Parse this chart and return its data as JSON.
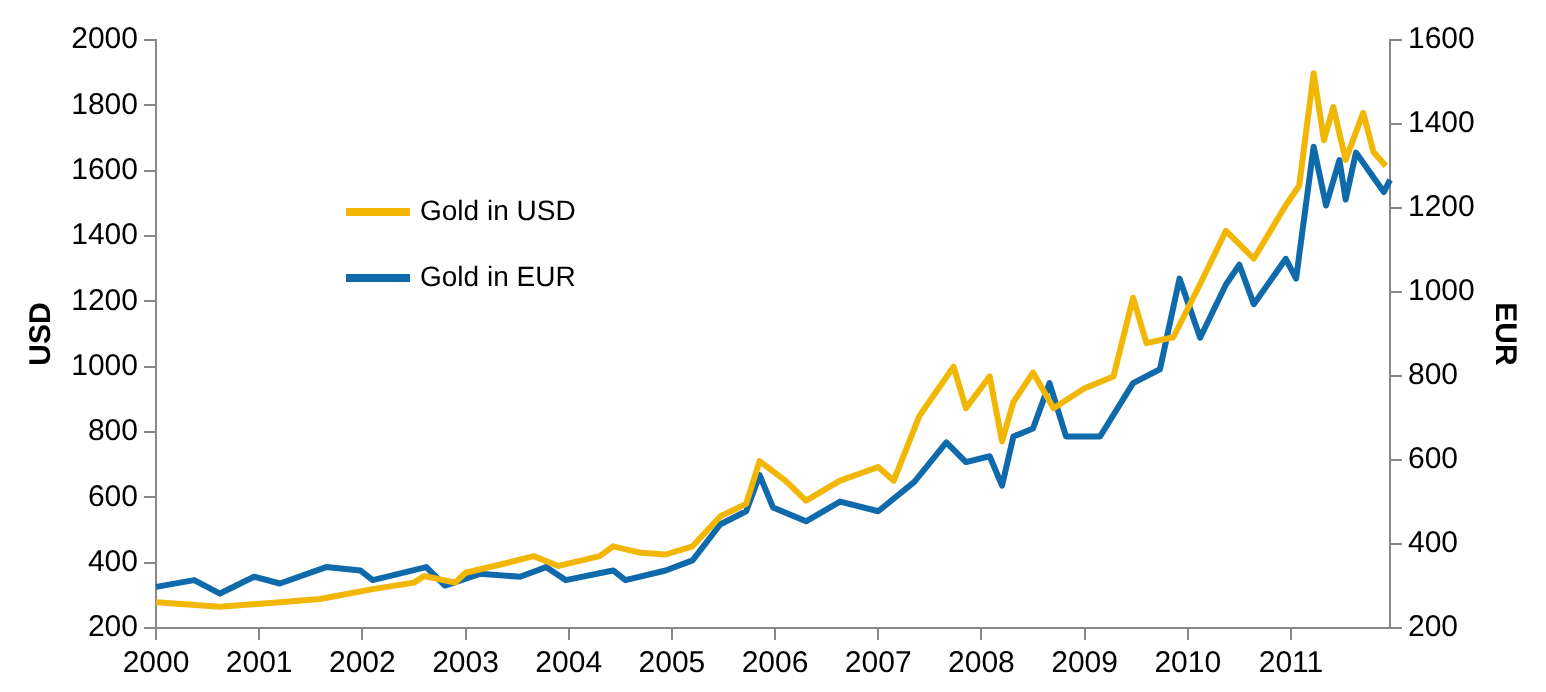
{
  "chart_data": {
    "type": "line",
    "ylabel": "USD",
    "y2label": "EUR",
    "xlim": [
      2000,
      2011.96
    ],
    "xticks": [
      2000,
      2001,
      2002,
      2003,
      2004,
      2005,
      2006,
      2007,
      2008,
      2009,
      2010,
      2011
    ],
    "ylim": [
      200,
      2000
    ],
    "yticks": [
      200,
      400,
      600,
      800,
      1000,
      1200,
      1400,
      1600,
      1800,
      2000
    ],
    "y2lim": [
      200,
      1600
    ],
    "y2ticks": [
      200,
      400,
      600,
      800,
      1000,
      1200,
      1400,
      1600
    ],
    "legend": "top left",
    "marker": "none",
    "line_style": "solid",
    "series": [
      {
        "name": "Gold in USD",
        "color": "#f2b705",
        "x": [
          2000.0,
          2000.62,
          2001.2,
          2001.59,
          2002.1,
          2002.5,
          2002.6,
          2002.9,
          2003.0,
          2003.4,
          2003.66,
          2003.9,
          2004.3,
          2004.43,
          2004.7,
          2004.94,
          2005.2,
          2005.47,
          2005.72,
          2005.85,
          2006.1,
          2006.3,
          2006.63,
          2007.0,
          2007.15,
          2007.4,
          2007.73,
          2007.85,
          2008.08,
          2008.2,
          2008.31,
          2008.5,
          2008.7,
          2009.0,
          2009.28,
          2009.47,
          2009.6,
          2009.86,
          2010.12,
          2010.37,
          2010.64,
          2010.95,
          2011.08,
          2011.22,
          2011.32,
          2011.41,
          2011.53,
          2011.7,
          2011.8,
          2011.92
        ],
        "values": [
          279,
          265,
          279,
          289,
          319,
          339,
          359,
          339,
          369,
          399,
          420,
          390,
          420,
          450,
          430,
          425,
          450,
          542,
          580,
          711,
          651,
          590,
          651,
          693,
          651,
          850,
          1000,
          873,
          970,
          771,
          892,
          982,
          873,
          934,
          970,
          1211,
          1072,
          1090,
          1253,
          1416,
          1331,
          1494,
          1554,
          1898,
          1693,
          1795,
          1633,
          1777,
          1657,
          1614
        ]
      },
      {
        "name": "Gold in EUR",
        "color": "#0f6aab",
        "axis": "y2",
        "x": [
          2000.0,
          2000.37,
          2000.62,
          2000.95,
          2001.2,
          2001.65,
          2001.98,
          2002.1,
          2002.62,
          2002.8,
          2003.14,
          2003.53,
          2003.78,
          2003.97,
          2004.43,
          2004.55,
          2004.94,
          2005.2,
          2005.47,
          2005.72,
          2005.85,
          2005.98,
          2006.3,
          2006.63,
          2007.0,
          2007.35,
          2007.66,
          2007.85,
          2008.08,
          2008.2,
          2008.31,
          2008.5,
          2008.66,
          2008.82,
          2009.15,
          2009.47,
          2009.73,
          2009.92,
          2010.12,
          2010.37,
          2010.5,
          2010.64,
          2010.95,
          2011.05,
          2011.22,
          2011.34,
          2011.47,
          2011.53,
          2011.63,
          2011.9,
          2011.96
        ],
        "values": [
          298,
          314,
          282,
          322,
          306,
          345,
          337,
          314,
          345,
          301,
          329,
          322,
          345,
          314,
          337,
          314,
          337,
          361,
          447,
          478,
          564,
          487,
          454,
          501,
          478,
          548,
          642,
          595,
          609,
          539,
          656,
          675,
          783,
          656,
          656,
          783,
          816,
          1032,
          891,
          1018,
          1065,
          971,
          1079,
          1032,
          1346,
          1206,
          1314,
          1220,
          1332,
          1238,
          1267
        ]
      }
    ]
  }
}
